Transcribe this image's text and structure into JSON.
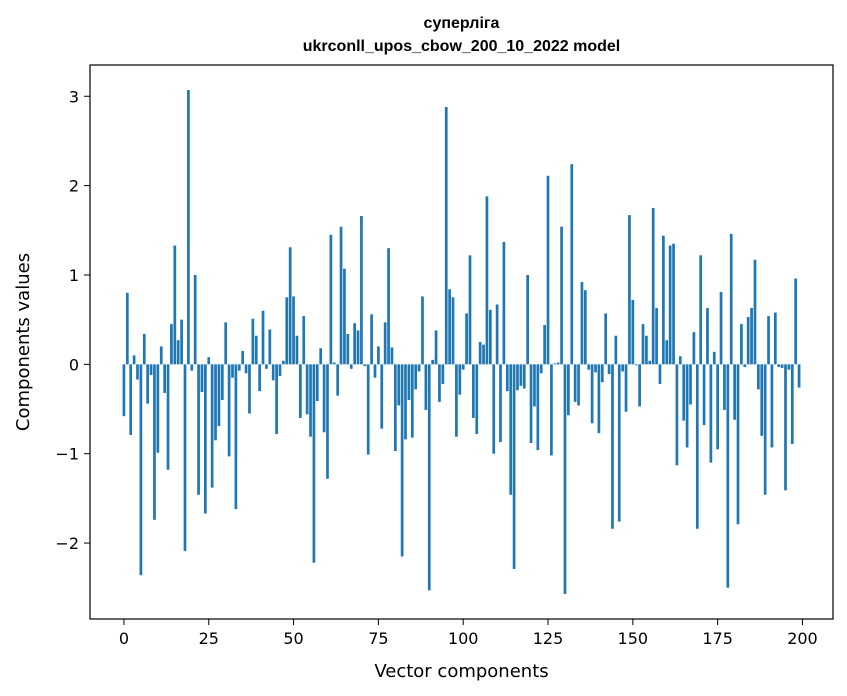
{
  "chart_data": {
    "type": "bar",
    "title_line1": "суперліга",
    "title_line2": "ukrconll_upos_cbow_200_10_2022 model",
    "xlabel": "Vector components",
    "ylabel": "Components values",
    "xlim": [
      -10,
      209
    ],
    "ylim": [
      -2.85,
      3.35
    ],
    "xticks": [
      0,
      25,
      50,
      75,
      100,
      125,
      150,
      175,
      200
    ],
    "xtick_labels": [
      "0",
      "25",
      "50",
      "75",
      "100",
      "125",
      "150",
      "175",
      "200"
    ],
    "yticks": [
      -2,
      -1,
      0,
      1,
      2,
      3
    ],
    "ytick_labels": [
      "−2",
      "−1",
      "0",
      "1",
      "2",
      "3"
    ],
    "color": "#1f77b4",
    "x": [
      0,
      1,
      2,
      3,
      4,
      5,
      6,
      7,
      8,
      9,
      10,
      11,
      12,
      13,
      14,
      15,
      16,
      17,
      18,
      19,
      20,
      21,
      22,
      23,
      24,
      25,
      26,
      27,
      28,
      29,
      30,
      31,
      32,
      33,
      34,
      35,
      36,
      37,
      38,
      39,
      40,
      41,
      42,
      43,
      44,
      45,
      46,
      47,
      48,
      49,
      50,
      51,
      52,
      53,
      54,
      55,
      56,
      57,
      58,
      59,
      60,
      61,
      62,
      63,
      64,
      65,
      66,
      67,
      68,
      69,
      70,
      71,
      72,
      73,
      74,
      75,
      76,
      77,
      78,
      79,
      80,
      81,
      82,
      83,
      84,
      85,
      86,
      87,
      88,
      89,
      90,
      91,
      92,
      93,
      94,
      95,
      96,
      97,
      98,
      99,
      100,
      101,
      102,
      103,
      104,
      105,
      106,
      107,
      108,
      109,
      110,
      111,
      112,
      113,
      114,
      115,
      116,
      117,
      118,
      119,
      120,
      121,
      122,
      123,
      124,
      125,
      126,
      127,
      128,
      129,
      130,
      131,
      132,
      133,
      134,
      135,
      136,
      137,
      138,
      139,
      140,
      141,
      142,
      143,
      144,
      145,
      146,
      147,
      148,
      149,
      150,
      151,
      152,
      153,
      154,
      155,
      156,
      157,
      158,
      159,
      160,
      161,
      162,
      163,
      164,
      165,
      166,
      167,
      168,
      169,
      170,
      171,
      172,
      173,
      174,
      175,
      176,
      177,
      178,
      179,
      180,
      181,
      182,
      183,
      184,
      185,
      186,
      187,
      188,
      189,
      190,
      191,
      192,
      193,
      194,
      195,
      196,
      197,
      198,
      199
    ],
    "values": [
      -0.58,
      0.8,
      -0.79,
      0.1,
      -0.17,
      -2.36,
      0.34,
      -0.44,
      -0.12,
      -1.74,
      -0.99,
      0.2,
      -0.32,
      -1.18,
      0.45,
      1.33,
      0.27,
      0.5,
      -2.09,
      3.07,
      -0.07,
      1.0,
      -1.46,
      -0.31,
      -1.67,
      0.08,
      -1.38,
      -0.85,
      -0.69,
      -0.4,
      0.47,
      -1.03,
      -0.15,
      -1.62,
      -0.07,
      0.15,
      -0.1,
      -0.55,
      0.51,
      0.32,
      -0.3,
      0.6,
      -0.05,
      0.39,
      -0.18,
      -0.78,
      -0.13,
      0.04,
      0.75,
      1.31,
      0.76,
      0.32,
      -0.6,
      0.54,
      -0.56,
      -0.81,
      -2.22,
      -0.41,
      0.18,
      -0.76,
      -1.28,
      1.45,
      0.02,
      -0.35,
      1.54,
      1.07,
      0.34,
      -0.05,
      0.46,
      0.38,
      1.66,
      -0.02,
      -1.01,
      0.56,
      -0.15,
      0.2,
      -0.72,
      0.47,
      1.3,
      0.19,
      -0.97,
      -0.46,
      -2.15,
      -0.84,
      -0.4,
      -0.82,
      -0.28,
      -0.08,
      0.76,
      -0.51,
      -2.53,
      0.05,
      0.38,
      -0.42,
      -0.22,
      2.88,
      0.84,
      0.75,
      -0.81,
      -0.34,
      -0.06,
      0.57,
      1.22,
      -0.6,
      -0.78,
      0.25,
      0.22,
      1.88,
      0.61,
      -1.0,
      0.67,
      -0.87,
      1.37,
      -0.3,
      -1.46,
      -2.29,
      -0.29,
      -0.24,
      -0.27,
      1.0,
      -0.88,
      -0.47,
      -0.96,
      -0.1,
      0.44,
      2.11,
      -1.02,
      0.01,
      0.02,
      1.54,
      -2.57,
      -0.57,
      2.24,
      -0.42,
      -0.46,
      0.92,
      0.83,
      -0.06,
      -0.66,
      -0.09,
      -0.77,
      -0.2,
      0.57,
      -0.11,
      -1.84,
      0.32,
      -1.76,
      -0.08,
      -0.53,
      1.67,
      0.72,
      -0.01,
      -0.47,
      0.45,
      0.32,
      0.04,
      1.75,
      0.63,
      -0.22,
      1.44,
      0.27,
      1.33,
      1.35,
      -1.13,
      0.09,
      -0.63,
      -0.93,
      -0.45,
      0.36,
      -1.84,
      1.22,
      -0.68,
      0.63,
      -1.1,
      0.14,
      -0.95,
      0.81,
      -0.51,
      -2.5,
      1.46,
      -0.62,
      -1.79,
      0.45,
      -0.03,
      0.53,
      0.63,
      1.17,
      -0.28,
      -0.8,
      -1.46,
      0.54,
      -0.93,
      0.58,
      -0.03,
      -0.04,
      -1.41,
      -0.06,
      -0.89,
      0.96,
      -0.26
    ]
  }
}
